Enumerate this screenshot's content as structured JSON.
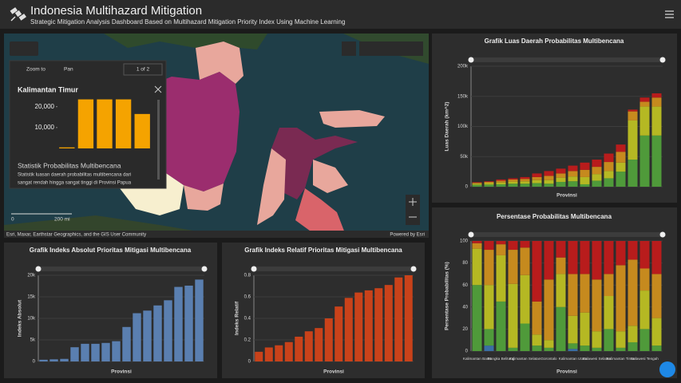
{
  "header": {
    "title": "Indonesia Multihazard Mitigation",
    "subtitle": "Strategic Mitigation Analysis Dashboard Based on Multihazard Mitigation Priority Index Using Machine Learning"
  },
  "map": {
    "zoom_to": "Zoom to",
    "pan": "Pan",
    "pager": "1 of 2",
    "popup_title": "Kalimantan Timur",
    "popup_heading": "Statistik Probabilitas Multibencana",
    "popup_text": [
      "Statistik luasan daerah probabilitas multibencana dari",
      "sangat rendah hingga sangat tinggi di Provinsi Papua"
    ],
    "scale_start": "0",
    "scale_end": "200 mi",
    "attribution": "Esri, Maxar, Earthstar Geographics, and the GIS User Community",
    "powered": "Powered by Esri"
  },
  "chart_data": [
    {
      "type": "bar",
      "categories": [
        null,
        null,
        null,
        null,
        null
      ],
      "values": [
        500,
        23500,
        23500,
        23500,
        16500
      ],
      "color": "#f5a300",
      "ylim": [
        0,
        26000
      ],
      "yticks": [
        {
          "value": 10000,
          "label": "10,000"
        },
        {
          "value": 20000,
          "label": "20,000"
        }
      ],
      "grid": false
    },
    {
      "type": "stacked_bar",
      "title": "Grafik Luas Daerah Probabilitas Multibencana",
      "x_label": "Provinsi",
      "y_label": "Luas Daerah (km^2)",
      "categories": [
        null,
        null,
        null,
        null,
        null,
        null,
        null,
        null,
        null,
        null,
        null,
        null,
        null,
        null,
        null,
        null
      ],
      "series": [
        {
          "color": "#4f9a3a",
          "values": [
            3000,
            3500,
            4000,
            5000,
            5000,
            6000,
            5000,
            8000,
            9000,
            4000,
            10000,
            14000,
            25000,
            45000,
            85000,
            85000
          ]
        },
        {
          "color": "#b5b823",
          "values": [
            2000,
            2500,
            3000,
            3500,
            4000,
            5000,
            6000,
            7000,
            8000,
            12000,
            11000,
            12000,
            15000,
            65000,
            48000,
            48000
          ]
        },
        {
          "color": "#c68a1e",
          "values": [
            1500,
            2000,
            3000,
            3500,
            4000,
            5000,
            7000,
            7000,
            9000,
            12000,
            12000,
            15000,
            18000,
            15000,
            8000,
            15000
          ]
        },
        {
          "color": "#b81c1c",
          "values": [
            1000,
            1000,
            2000,
            2000,
            3000,
            6000,
            8000,
            8000,
            9000,
            12000,
            12000,
            14000,
            12000,
            3000,
            7000,
            7000
          ]
        }
      ],
      "ylim": [
        0,
        200000
      ],
      "yticks": [
        0,
        {
          "value": 50000,
          "label": "50k"
        },
        {
          "value": 100000,
          "label": "100k"
        },
        {
          "value": 150000,
          "label": "150k"
        },
        {
          "value": 200000,
          "label": "200k"
        }
      ],
      "grid": true
    },
    {
      "type": "bar",
      "title": "Grafik Indeks Absolut Prioritas Mitigasi Multibencana",
      "x_label": "Provinsi",
      "y_label": "Indeks Absolut",
      "categories": [
        null,
        null,
        null,
        null,
        null,
        null,
        null,
        null,
        null,
        null,
        null,
        null,
        null,
        null,
        null,
        null
      ],
      "values": [
        400,
        500,
        600,
        3300,
        4100,
        4100,
        4300,
        4700,
        8000,
        11200,
        11800,
        13000,
        14200,
        17300,
        17600,
        19000
      ],
      "color": "#5a7fb0",
      "ylim": [
        0,
        20000
      ],
      "yticks": [
        0,
        {
          "value": 5000,
          "label": "5k"
        },
        {
          "value": 10000,
          "label": "10k"
        },
        {
          "value": 15000,
          "label": "15k"
        },
        {
          "value": 20000,
          "label": "20k"
        }
      ],
      "grid": true
    },
    {
      "type": "bar",
      "title": "Grafik Indeks Relatif Prioritas Mitigasi Multibencana",
      "x_label": "Provinsi",
      "y_label": "Indeks Relatif",
      "categories": [
        null,
        null,
        null,
        null,
        null,
        null,
        null,
        null,
        null,
        null,
        null,
        null,
        null,
        null,
        null,
        null
      ],
      "values": [
        0.09,
        0.13,
        0.15,
        0.18,
        0.23,
        0.28,
        0.31,
        0.4,
        0.51,
        0.59,
        0.64,
        0.66,
        0.68,
        0.71,
        0.78,
        0.8
      ],
      "color": "#c9421a",
      "ylim": [
        0,
        0.8
      ],
      "yticks": [
        0,
        0.2,
        0.4,
        0.6,
        0.8
      ],
      "grid": true
    },
    {
      "type": "stacked_bar",
      "title": "Persentase Probabilitas Multibencana",
      "x_label": "Provinsi",
      "y_label": "Persentase Probabilitas (%)",
      "categories": [
        "Kalimantan Barat",
        null,
        "Bangka Belitung",
        null,
        "Kalimantan Selatan",
        null,
        "Gorontalo",
        null,
        "Kalimantan Utara",
        null,
        "Sulawesi Selatan",
        null,
        "Kalimantan Timur",
        null,
        "Sulawesi Tengah",
        null
      ],
      "series": [
        {
          "color": "#3a6ea5",
          "values": [
            0,
            5,
            0,
            0,
            0,
            0,
            0,
            0,
            2,
            0,
            0,
            0,
            0,
            0,
            0,
            0
          ]
        },
        {
          "color": "#4f9a3a",
          "values": [
            60,
            15,
            45,
            3,
            25,
            5,
            3,
            40,
            5,
            5,
            3,
            20,
            3,
            8,
            20,
            5
          ]
        },
        {
          "color": "#b5b823",
          "values": [
            33,
            40,
            42,
            58,
            44,
            10,
            7,
            30,
            25,
            30,
            15,
            30,
            15,
            15,
            35,
            25
          ]
        },
        {
          "color": "#c68a1e",
          "values": [
            5,
            32,
            10,
            31,
            25,
            30,
            55,
            15,
            38,
            35,
            47,
            20,
            60,
            60,
            20,
            40
          ]
        },
        {
          "color": "#b81c1c",
          "values": [
            2,
            8,
            3,
            8,
            6,
            55,
            35,
            15,
            30,
            30,
            35,
            30,
            22,
            17,
            25,
            30
          ]
        }
      ],
      "ylim": [
        0,
        100
      ],
      "yticks": [
        0,
        20,
        40,
        60,
        80,
        100
      ],
      "grid": true
    }
  ]
}
